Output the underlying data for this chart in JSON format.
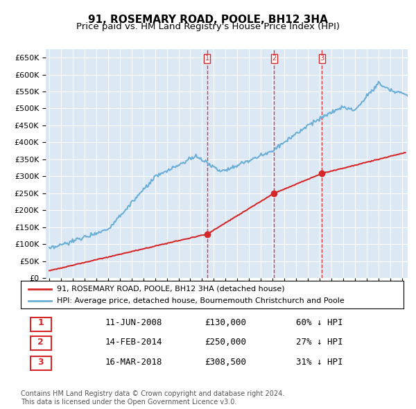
{
  "title": "91, ROSEMARY ROAD, POOLE, BH12 3HA",
  "subtitle": "Price paid vs. HM Land Registry's House Price Index (HPI)",
  "ylabel": "",
  "ylim": [
    0,
    675000
  ],
  "yticks": [
    0,
    50000,
    100000,
    150000,
    200000,
    250000,
    300000,
    350000,
    400000,
    450000,
    500000,
    550000,
    600000,
    650000
  ],
  "xlim_start": 1995.0,
  "xlim_end": 2025.5,
  "background_color": "#dce9f5",
  "plot_bg": "#dce9f5",
  "hpi_color": "#6baed6",
  "price_color": "#d62728",
  "sales": [
    {
      "date": 2008.44,
      "price": 130000,
      "label": "1"
    },
    {
      "date": 2014.12,
      "price": 250000,
      "label": "2"
    },
    {
      "date": 2018.21,
      "price": 308500,
      "label": "3"
    }
  ],
  "vline_color": "#d62728",
  "legend_labels": [
    "91, ROSEMARY ROAD, POOLE, BH12 3HA (detached house)",
    "HPI: Average price, detached house, Bournemouth Christchurch and Poole"
  ],
  "table_data": [
    [
      "1",
      "11-JUN-2008",
      "£130,000",
      "60% ↓ HPI"
    ],
    [
      "2",
      "14-FEB-2014",
      "£250,000",
      "27% ↓ HPI"
    ],
    [
      "3",
      "16-MAR-2018",
      "£308,500",
      "31% ↓ HPI"
    ]
  ],
  "footnote": "Contains HM Land Registry data © Crown copyright and database right 2024.\nThis data is licensed under the Open Government Licence v3.0.",
  "title_fontsize": 11,
  "subtitle_fontsize": 9.5,
  "tick_fontsize": 8,
  "legend_fontsize": 8
}
